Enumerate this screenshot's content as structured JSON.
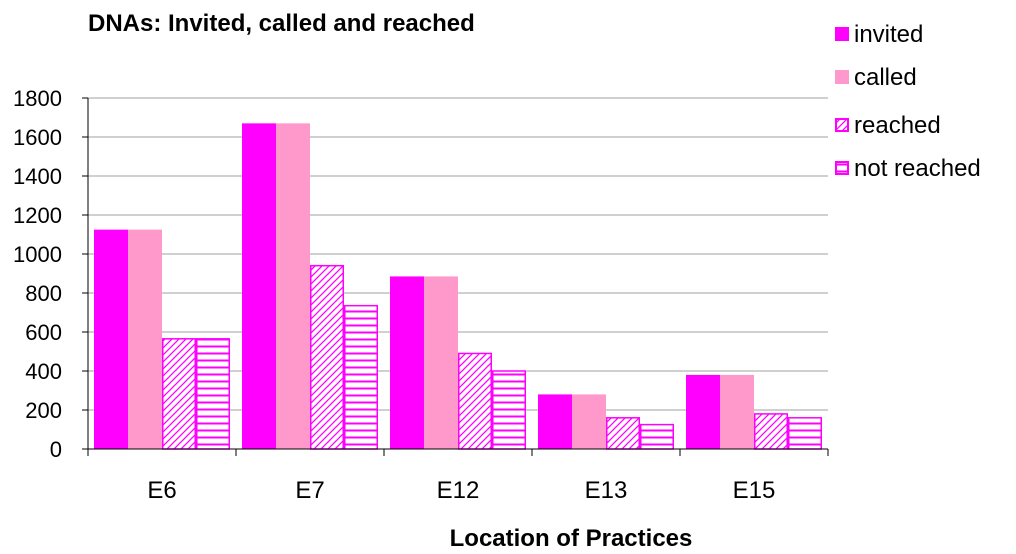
{
  "chart_data": {
    "type": "bar",
    "title": "DNAs: Invited, called and reached",
    "xlabel": "Location of Practices",
    "ylabel": "",
    "ylim": [
      0,
      1800
    ],
    "yticks": [
      0,
      200,
      400,
      600,
      800,
      1000,
      1200,
      1400,
      1600,
      1800
    ],
    "categories": [
      "E6",
      "E7",
      "E12",
      "E13",
      "E15"
    ],
    "grid": "horizontal",
    "legend_position": "top-right",
    "series": [
      {
        "name": "invited",
        "values": [
          1125,
          1670,
          885,
          280,
          380
        ],
        "color": "#ff00ff",
        "pattern": "solid"
      },
      {
        "name": "called",
        "values": [
          1125,
          1670,
          885,
          280,
          380
        ],
        "color": "#ff99cc",
        "pattern": "solid"
      },
      {
        "name": "reached",
        "values": [
          565,
          940,
          490,
          160,
          180
        ],
        "color": "#ff00ff",
        "pattern": "diagonal"
      },
      {
        "name": "not reached",
        "values": [
          565,
          735,
          400,
          125,
          160
        ],
        "color": "#ff00ff",
        "pattern": "horizontal"
      }
    ]
  }
}
